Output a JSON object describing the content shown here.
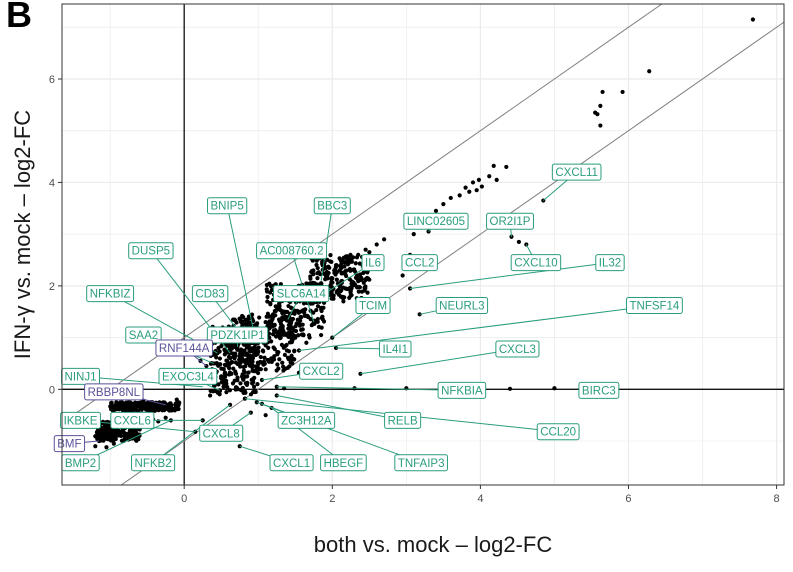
{
  "panel_letter": "B",
  "colors": {
    "label_green": "#2a9d7e",
    "label_purple": "#5a5299",
    "point": "#000000",
    "grid": "#ebebeb",
    "diag": "#7f7f7f"
  },
  "chart_data": {
    "type": "scatter",
    "xlabel": "both vs. mock – log2-FC",
    "ylabel": "IFN-γ vs. mock – log2-FC",
    "xlim": [
      -1.65,
      8.1
    ],
    "ylim": [
      -1.85,
      7.45
    ],
    "xticks": [
      0,
      2,
      4,
      6,
      8
    ],
    "yticks": [
      0,
      2,
      4,
      6
    ],
    "grid": true,
    "reference_lines": [
      "x = 0",
      "y = 0",
      "y = x + 1",
      "y = x - 1"
    ],
    "points": [
      [
        7.68,
        7.15
      ],
      [
        6.28,
        6.15
      ],
      [
        5.92,
        5.75
      ],
      [
        5.65,
        5.75
      ],
      [
        5.62,
        5.48
      ],
      [
        5.62,
        5.1
      ],
      [
        5.58,
        5.32
      ],
      [
        5.55,
        5.35
      ],
      [
        4.85,
        3.65
      ],
      [
        4.42,
        2.95
      ],
      [
        4.52,
        2.85
      ],
      [
        4.62,
        2.8
      ],
      [
        4.35,
        4.3
      ],
      [
        4.18,
        4.32
      ],
      [
        4.12,
        4.12
      ],
      [
        4.22,
        4.05
      ],
      [
        3.98,
        4.05
      ],
      [
        4.02,
        3.92
      ],
      [
        3.9,
        4.0
      ],
      [
        3.95,
        3.85
      ],
      [
        3.85,
        3.82
      ],
      [
        3.8,
        3.9
      ],
      [
        3.72,
        3.75
      ],
      [
        3.6,
        3.7
      ],
      [
        3.5,
        3.58
      ],
      [
        3.4,
        3.45
      ],
      [
        3.3,
        3.35
      ],
      [
        3.2,
        3.22
      ],
      [
        3.3,
        3.05
      ],
      [
        3.1,
        3.0
      ],
      [
        3.05,
        2.6
      ],
      [
        3.05,
        2.4
      ],
      [
        2.95,
        2.2
      ],
      [
        3.05,
        1.95
      ],
      [
        3.18,
        1.45
      ],
      [
        2.7,
        2.9
      ],
      [
        2.6,
        2.8
      ],
      [
        2.5,
        2.65
      ],
      [
        2.45,
        2.7
      ],
      [
        2.35,
        2.6
      ],
      [
        2.25,
        2.5
      ],
      [
        2.1,
        2.3
      ],
      [
        2.35,
        2.2
      ],
      [
        2.25,
        1.9
      ],
      [
        2.15,
        1.7
      ],
      [
        1.95,
        1.9
      ],
      [
        1.85,
        1.55
      ],
      [
        1.75,
        1.3
      ],
      [
        1.6,
        1.25
      ],
      [
        1.65,
        0.9
      ],
      [
        1.55,
        0.75
      ],
      [
        1.45,
        0.65
      ],
      [
        2.05,
        0.8
      ],
      [
        2.0,
        1.0
      ],
      [
        2.38,
        0.3
      ],
      [
        1.55,
        0.32
      ],
      [
        1.05,
        0.18
      ],
      [
        1.25,
        0.05
      ],
      [
        1.35,
        0.02
      ],
      [
        2.3,
        0.02
      ],
      [
        3.0,
        0.02
      ],
      [
        3.7,
        0.01
      ],
      [
        4.4,
        0.01
      ],
      [
        5.0,
        0.02
      ],
      [
        5.35,
        0.01
      ],
      [
        1.25,
        -0.12
      ],
      [
        0.82,
        -0.18
      ],
      [
        1.05,
        -0.28
      ],
      [
        1.18,
        -0.36
      ],
      [
        0.98,
        -0.25
      ],
      [
        0.62,
        -0.3
      ],
      [
        0.25,
        -0.6
      ],
      [
        0.15,
        -0.82
      ],
      [
        -0.18,
        -0.6
      ],
      [
        0.75,
        -1.1
      ],
      [
        0.9,
        -0.45
      ],
      [
        1.1,
        -0.5
      ],
      [
        0.35,
        -0.12
      ],
      [
        0.48,
        -0.02
      ],
      [
        0.7,
        0.04
      ],
      [
        0.55,
        0.12
      ],
      [
        0.5,
        0.25
      ],
      [
        0.85,
        0.25
      ],
      [
        0.58,
        0.55
      ],
      [
        0.62,
        0.7
      ],
      [
        0.9,
        0.9
      ],
      [
        0.95,
        1.05
      ],
      [
        1.05,
        1.15
      ],
      [
        1.1,
        1.3
      ],
      [
        1.15,
        1.2
      ],
      [
        1.2,
        1.45
      ],
      [
        1.28,
        1.6
      ],
      [
        1.35,
        1.5
      ],
      [
        1.42,
        1.7
      ],
      [
        1.5,
        1.8
      ],
      [
        1.4,
        1.35
      ],
      [
        1.25,
        1.1
      ],
      [
        1.6,
        1.95
      ],
      [
        1.7,
        2.05
      ],
      [
        1.8,
        2.15
      ],
      [
        1.95,
        2.25
      ],
      [
        2.05,
        2.4
      ],
      [
        1.1,
        0.85
      ],
      [
        0.98,
        0.72
      ],
      [
        0.88,
        0.62
      ],
      [
        0.75,
        0.5
      ],
      [
        0.68,
        0.6
      ],
      [
        0.72,
        0.82
      ],
      [
        0.8,
        1.0
      ],
      [
        0.7,
        0.3
      ],
      [
        0.45,
        0.7
      ],
      [
        0.4,
        0.5
      ],
      [
        0.3,
        0.45
      ],
      [
        0.32,
        0.35
      ],
      [
        0.42,
        0.9
      ],
      [
        0.22,
        0.55
      ],
      [
        -0.1,
        -0.2
      ],
      [
        -0.25,
        -0.55
      ],
      [
        -0.35,
        -0.62
      ],
      [
        -0.42,
        -0.58
      ],
      [
        -0.6,
        -0.65
      ],
      [
        -0.7,
        -0.72
      ],
      [
        -0.8,
        -0.75
      ],
      [
        -0.9,
        -0.8
      ],
      [
        -1.0,
        -0.85
      ],
      [
        -1.1,
        -0.95
      ],
      [
        -1.15,
        -1.0
      ],
      [
        -1.2,
        -1.1
      ],
      [
        -1.05,
        -1.12
      ],
      [
        -0.95,
        -1.05
      ],
      [
        -0.85,
        -0.9
      ],
      [
        -0.75,
        -0.95
      ],
      [
        -0.3,
        -0.28
      ],
      [
        -0.45,
        -0.25
      ],
      [
        -0.5,
        -0.35
      ],
      [
        -0.65,
        -0.3
      ],
      [
        -0.75,
        -0.25
      ],
      [
        -0.55,
        -0.22
      ],
      [
        -0.4,
        -0.35
      ],
      [
        -0.2,
        -0.38
      ]
    ],
    "dense_regions": [
      {
        "x": [
          0.35,
          1.0
        ],
        "y": [
          -0.1,
          1.25
        ]
      },
      {
        "x": [
          0.6,
          1.5
        ],
        "y": [
          0.35,
          1.45
        ]
      },
      {
        "x": [
          1.1,
          1.9
        ],
        "y": [
          1.0,
          2.05
        ]
      },
      {
        "x": [
          1.7,
          2.5
        ],
        "y": [
          1.75,
          2.6
        ]
      },
      {
        "x": [
          -1.0,
          -0.05
        ],
        "y": [
          -0.42,
          -0.25
        ]
      },
      {
        "x": [
          -1.2,
          -0.6
        ],
        "y": [
          -1.0,
          -0.62
        ]
      }
    ],
    "labels": [
      {
        "text": "CXCL11",
        "lx": 5.3,
        "ly": 4.2,
        "px": 4.85,
        "py": 3.65,
        "color": "green"
      },
      {
        "text": "OR2I1P",
        "lx": 4.4,
        "ly": 3.25,
        "px": 4.42,
        "py": 2.95,
        "color": "green"
      },
      {
        "text": "CXCL10",
        "lx": 4.75,
        "ly": 2.45,
        "px": 4.62,
        "py": 2.8,
        "color": "green"
      },
      {
        "text": "IL32",
        "lx": 5.75,
        "ly": 2.45,
        "px": 3.05,
        "py": 1.95,
        "color": "green"
      },
      {
        "text": "TNFSF14",
        "lx": 6.35,
        "ly": 1.62,
        "px": 1.55,
        "py": 0.75,
        "color": "green"
      },
      {
        "text": "NEURL3",
        "lx": 3.75,
        "ly": 1.62,
        "px": 3.18,
        "py": 1.45,
        "color": "green"
      },
      {
        "text": "LINC02605",
        "lx": 3.4,
        "ly": 3.25,
        "px": 3.3,
        "py": 3.05,
        "color": "green"
      },
      {
        "text": "CCL2",
        "lx": 3.18,
        "ly": 2.45,
        "px": 3.05,
        "py": 2.4,
        "color": "green"
      },
      {
        "text": "BBC3",
        "lx": 2.0,
        "ly": 3.55,
        "px": 1.85,
        "py": 2.1,
        "color": "green"
      },
      {
        "text": "AC008760.2",
        "lx": 1.45,
        "ly": 2.68,
        "px": 1.75,
        "py": 1.3,
        "color": "green"
      },
      {
        "text": "IL6",
        "lx": 2.55,
        "ly": 2.45,
        "px": 1.95,
        "py": 1.9,
        "color": "green"
      },
      {
        "text": "TCIM",
        "lx": 2.55,
        "ly": 1.62,
        "px": 2.0,
        "py": 1.0,
        "color": "green"
      },
      {
        "text": "SLC6A14",
        "lx": 1.58,
        "ly": 1.85,
        "px": 1.4,
        "py": 1.35,
        "color": "green"
      },
      {
        "text": "IL4I1",
        "lx": 2.85,
        "ly": 0.78,
        "px": 2.05,
        "py": 0.8,
        "color": "green"
      },
      {
        "text": "CXCL3",
        "lx": 4.5,
        "ly": 0.78,
        "px": 2.38,
        "py": 0.3,
        "color": "green"
      },
      {
        "text": "CXCL2",
        "lx": 1.85,
        "ly": 0.35,
        "px": 1.05,
        "py": 0.18,
        "color": "green"
      },
      {
        "text": "NFKBIA",
        "lx": 3.75,
        "ly": -0.02,
        "px": 1.25,
        "py": 0.05,
        "color": "green"
      },
      {
        "text": "BIRC3",
        "lx": 5.6,
        "ly": -0.02,
        "px": 5.35,
        "py": 0.01,
        "color": "green"
      },
      {
        "text": "RELB",
        "lx": 2.95,
        "ly": -0.6,
        "px": 1.25,
        "py": -0.12,
        "color": "green"
      },
      {
        "text": "CCL20",
        "lx": 5.05,
        "ly": -0.82,
        "px": 0.82,
        "py": -0.18,
        "color": "green"
      },
      {
        "text": "ZC3H12A",
        "lx": 1.65,
        "ly": -0.6,
        "px": 1.05,
        "py": -0.28,
        "color": "green"
      },
      {
        "text": "HBEGF",
        "lx": 2.15,
        "ly": -1.42,
        "px": 1.18,
        "py": -0.36,
        "color": "green"
      },
      {
        "text": "TNFAIP3",
        "lx": 3.2,
        "ly": -1.42,
        "px": 0.98,
        "py": -0.25,
        "color": "green"
      },
      {
        "text": "CXCL1",
        "lx": 1.45,
        "ly": -1.42,
        "px": 0.75,
        "py": -1.1,
        "color": "green"
      },
      {
        "text": "CXCL8",
        "lx": 0.5,
        "ly": -0.85,
        "px": 0.9,
        "py": -0.45,
        "color": "green"
      },
      {
        "text": "NFKB2",
        "lx": -0.42,
        "ly": -1.42,
        "px": 0.62,
        "py": -0.3,
        "color": "green"
      },
      {
        "text": "BNIP5",
        "lx": 0.58,
        "ly": 3.55,
        "px": 0.95,
        "py": 1.05,
        "color": "green"
      },
      {
        "text": "DUSP5",
        "lx": -0.45,
        "ly": 2.68,
        "px": 0.62,
        "py": 0.7,
        "color": "green"
      },
      {
        "text": "NFKBIZ",
        "lx": -1.0,
        "ly": 1.85,
        "px": 0.45,
        "py": 0.7,
        "color": "green"
      },
      {
        "text": "CD83",
        "lx": 0.35,
        "ly": 1.85,
        "px": 0.8,
        "py": 1.0,
        "color": "green"
      },
      {
        "text": "SAA2",
        "lx": -0.55,
        "ly": 1.05,
        "px": 0.4,
        "py": 0.5,
        "color": "green"
      },
      {
        "text": "PDZK1IP1",
        "lx": 0.72,
        "ly": 1.05,
        "px": 0.72,
        "py": 0.82,
        "color": "green"
      },
      {
        "text": "RNF144A",
        "lx": 0.0,
        "ly": 0.8,
        "px": 0.3,
        "py": 0.45,
        "color": "purple"
      },
      {
        "text": "NINJ1",
        "lx": -1.4,
        "ly": 0.25,
        "px": 0.25,
        "py": 0.05,
        "color": "green"
      },
      {
        "text": "EXOC3L4",
        "lx": 0.05,
        "ly": 0.25,
        "px": 0.48,
        "py": -0.02,
        "color": "green"
      },
      {
        "text": "RBBP8NL",
        "lx": -0.95,
        "ly": -0.05,
        "px": -0.25,
        "py": -0.3,
        "color": "purple"
      },
      {
        "text": "IKBKE",
        "lx": -1.4,
        "ly": -0.6,
        "px": 0.15,
        "py": -0.82,
        "color": "green"
      },
      {
        "text": "CXCL6",
        "lx": -0.7,
        "ly": -0.6,
        "px": 0.25,
        "py": -0.6,
        "color": "green"
      },
      {
        "text": "BMF",
        "lx": -1.55,
        "ly": -1.05,
        "px": -1.15,
        "py": -1.0,
        "color": "purple"
      },
      {
        "text": "BMP2",
        "lx": -1.4,
        "ly": -1.42,
        "px": -0.18,
        "py": -0.6,
        "color": "green"
      }
    ]
  }
}
